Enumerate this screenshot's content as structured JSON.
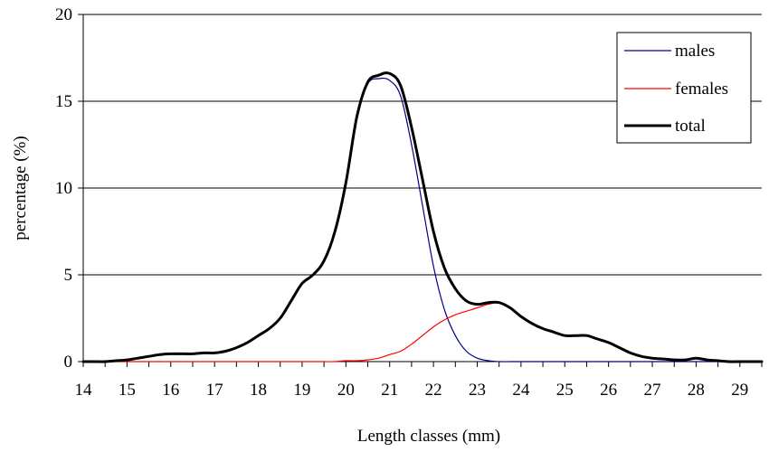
{
  "chart_data": {
    "type": "line",
    "title": "",
    "xlabel": "Length classes (mm)",
    "ylabel": "percentage (%)",
    "xlim": [
      14,
      29.5
    ],
    "ylim": [
      0,
      20
    ],
    "x_ticks": [
      "14",
      "15",
      "16",
      "17",
      "18",
      "19",
      "20",
      "21",
      "22",
      "23",
      "24",
      "25",
      "26",
      "27",
      "28",
      "29"
    ],
    "y_ticks": [
      "0",
      "5",
      "10",
      "15",
      "20"
    ],
    "grid": "horizontal",
    "legend_position": "top-right",
    "x": [
      14,
      14.25,
      14.5,
      14.75,
      15,
      15.25,
      15.5,
      15.75,
      16,
      16.25,
      16.5,
      16.75,
      17,
      17.25,
      17.5,
      17.75,
      18,
      18.25,
      18.5,
      18.75,
      19,
      19.25,
      19.5,
      19.75,
      20,
      20.25,
      20.5,
      20.75,
      21,
      21.25,
      21.5,
      21.75,
      22,
      22.25,
      22.5,
      22.75,
      23,
      23.25,
      23.5,
      23.75,
      24,
      24.25,
      24.5,
      24.75,
      25,
      25.25,
      25.5,
      25.75,
      26,
      26.25,
      26.5,
      26.75,
      27,
      27.25,
      27.5,
      27.75,
      28,
      28.25,
      28.5,
      28.75,
      29,
      29.25,
      29.5
    ],
    "series": [
      {
        "name": "males",
        "color": "#00008b",
        "values": [
          0,
          0,
          0,
          0.05,
          0.1,
          0.2,
          0.3,
          0.4,
          0.45,
          0.45,
          0.45,
          0.5,
          0.5,
          0.6,
          0.8,
          1.1,
          1.5,
          1.9,
          2.5,
          3.5,
          4.5,
          5.0,
          5.8,
          7.5,
          10.2,
          14.0,
          16.0,
          16.3,
          16.2,
          15.3,
          12.5,
          9.0,
          5.5,
          3.0,
          1.5,
          0.6,
          0.2,
          0.05,
          0,
          0,
          0,
          0,
          0,
          0,
          0,
          0,
          0,
          0,
          0,
          0,
          0,
          0,
          0,
          0,
          0,
          0,
          0,
          0,
          0,
          0,
          0,
          0,
          0
        ]
      },
      {
        "name": "females",
        "color": "#ff0000",
        "values": [
          0,
          0,
          0,
          0,
          0,
          0,
          0,
          0,
          0,
          0,
          0,
          0,
          0,
          0,
          0,
          0,
          0,
          0,
          0,
          0,
          0,
          0,
          0,
          0,
          0.05,
          0.05,
          0.1,
          0.2,
          0.4,
          0.6,
          1.0,
          1.5,
          2.0,
          2.4,
          2.7,
          2.9,
          3.1,
          3.3,
          3.4,
          3.1,
          2.6,
          2.2,
          1.9,
          1.7,
          1.5,
          1.5,
          1.5,
          1.3,
          1.1,
          0.8,
          0.5,
          0.3,
          0.2,
          0.15,
          0.1,
          0.1,
          0.2,
          0.1,
          0.05,
          0,
          0,
          0,
          0
        ]
      },
      {
        "name": "total",
        "color": "#000000",
        "values": [
          0,
          0,
          0,
          0.05,
          0.1,
          0.2,
          0.3,
          0.4,
          0.45,
          0.45,
          0.45,
          0.5,
          0.5,
          0.6,
          0.8,
          1.1,
          1.5,
          1.9,
          2.5,
          3.5,
          4.5,
          5.0,
          5.8,
          7.5,
          10.3,
          14.1,
          16.1,
          16.5,
          16.6,
          15.9,
          13.5,
          10.5,
          7.5,
          5.4,
          4.2,
          3.5,
          3.3,
          3.4,
          3.4,
          3.1,
          2.6,
          2.2,
          1.9,
          1.7,
          1.5,
          1.5,
          1.5,
          1.3,
          1.1,
          0.8,
          0.5,
          0.3,
          0.2,
          0.15,
          0.1,
          0.1,
          0.2,
          0.1,
          0.05,
          0,
          0,
          0,
          0
        ]
      }
    ]
  }
}
